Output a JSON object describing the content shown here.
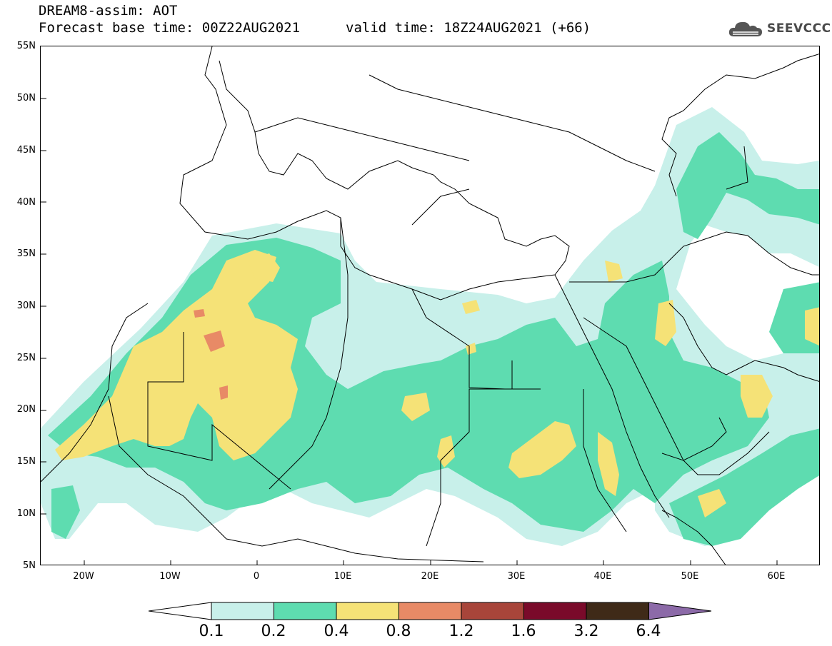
{
  "header": {
    "title": "DREAM8-assim: AOT",
    "base_time": "Forecast base time: 00Z22AUG2021",
    "valid_time": "valid time: 18Z24AUG2021 (+66)",
    "logo_text": "SEEVCCC"
  },
  "map": {
    "lat_labels": [
      "55N",
      "50N",
      "45N",
      "40N",
      "35N",
      "30N",
      "25N",
      "20N",
      "15N",
      "10N",
      "5N"
    ],
    "lon_labels": [
      "20W",
      "10W",
      "0",
      "10E",
      "20E",
      "30E",
      "40E",
      "50E",
      "60E"
    ],
    "extent": {
      "lon": [
        -25,
        65
      ],
      "lat": [
        5,
        55
      ]
    }
  },
  "colorbar": {
    "labels": [
      "0.1",
      "0.2",
      "0.4",
      "0.8",
      "1.2",
      "1.6",
      "3.2",
      "6.4"
    ],
    "colors": [
      "#c8f0ea",
      "#5edcb0",
      "#f5e277",
      "#e88a66",
      "#a8453a",
      "#7a0a2a",
      "#3f2a18",
      "#8c6aa8"
    ]
  },
  "colors": {
    "level_0_1": "#c8f0ea",
    "level_0_2": "#5edcb0",
    "level_0_4": "#f5e277",
    "level_0_8": "#e88a66"
  }
}
